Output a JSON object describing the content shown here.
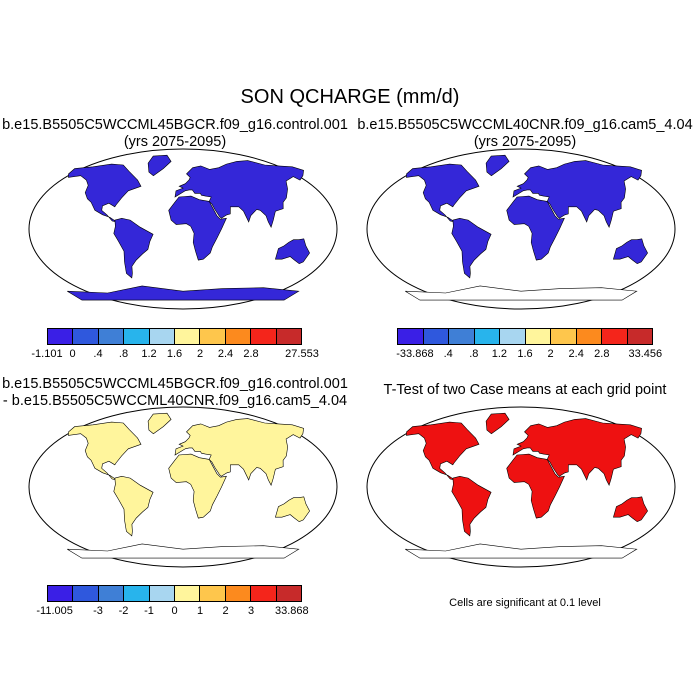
{
  "title": "SON QCHARGE (mm/d)",
  "panels": {
    "p1": {
      "line1": "b.e15.B5505C5WCCML45BGCR.f09_g16.control.001",
      "line2": "(yrs 2075-2095)"
    },
    "p2": {
      "line1": "b.e15.B5505C5WCCML40CNR.f09_g16.cam5_4.04",
      "line2": "(yrs 2075-2095)"
    },
    "p3": {
      "line1": "b.e15.B5505C5WCCML45BGCR.f09_g16.control.001",
      "line2": "- b.e15.B5505C5WCCML40CNR.f09_g16.cam5_4.04"
    },
    "p4": {
      "line1": "T-Test of two Case means at each grid point",
      "note": "Cells are significant at 0.1 level"
    }
  },
  "colorbars": {
    "cb1": {
      "colors": [
        "#3a1fe6",
        "#2f58dd",
        "#3f7fd6",
        "#28b4ec",
        "#a8d6f0",
        "#fff59c",
        "#fec64c",
        "#fc8a1e",
        "#f4251b",
        "#c72a2a"
      ],
      "labels": [
        "-1.101",
        "0",
        ".4",
        ".8",
        "1.2",
        "1.6",
        "2",
        "2.4",
        "2.8",
        "27.553"
      ]
    },
    "cb2": {
      "colors": [
        "#3a1fe6",
        "#2f58dd",
        "#3f7fd6",
        "#28b4ec",
        "#a8d6f0",
        "#fff59c",
        "#fec64c",
        "#fc8a1e",
        "#f4251b",
        "#c72a2a"
      ],
      "labels": [
        "-33.868",
        ".4",
        ".8",
        "1.2",
        "1.6",
        "2",
        "2.4",
        "2.8",
        "33.456"
      ]
    },
    "cb3": {
      "colors": [
        "#3a1fe6",
        "#2f58dd",
        "#3f7fd6",
        "#28b4ec",
        "#a8d6f0",
        "#fff59c",
        "#fec64c",
        "#fc8a1e",
        "#f4251b",
        "#c72a2a"
      ],
      "labels": [
        "-11.005",
        "-3",
        "-2",
        "-1",
        "0",
        "1",
        "2",
        "3",
        "33.868"
      ]
    }
  },
  "land_colors": {
    "p1": "#3427d8",
    "p2": "#3427d8",
    "p3": "#fff59c",
    "p4": "#ee1111"
  }
}
